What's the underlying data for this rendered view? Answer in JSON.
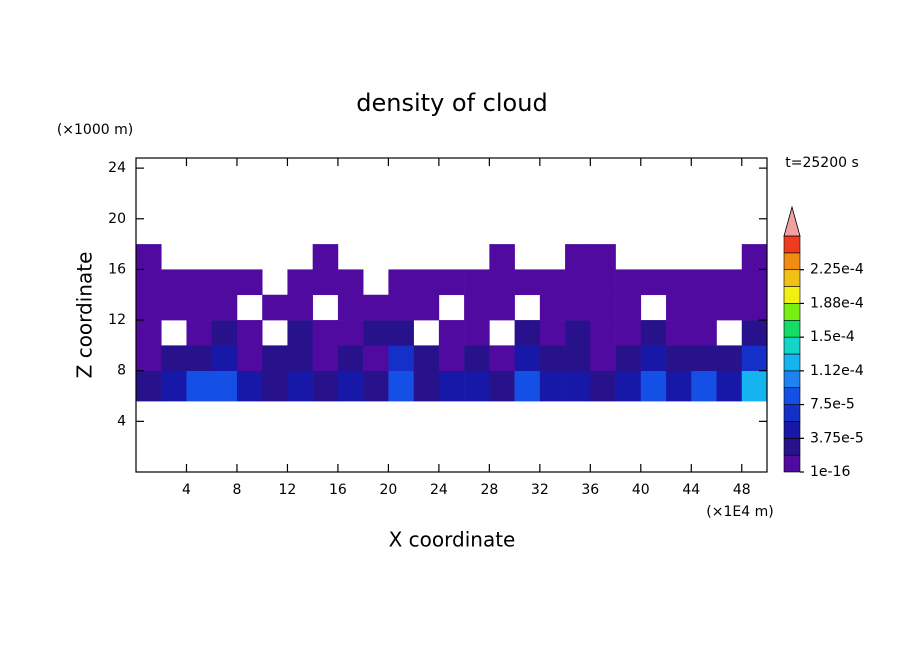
{
  "chart_data": {
    "type": "contour",
    "title": "density of cloud",
    "y_unit_label": "(×1000 m)",
    "x_unit_label": "(×1E4 m)",
    "time_label": "t=25200 s",
    "xlabel": "X coordinate",
    "ylabel": "Z coordinate",
    "xlim": [
      0,
      50
    ],
    "ylim": [
      0,
      24.8
    ],
    "xticks": [
      4,
      8,
      12,
      16,
      20,
      24,
      28,
      32,
      36,
      40,
      44,
      48
    ],
    "yticks": [
      4,
      8,
      12,
      16,
      20,
      24
    ],
    "x_edges": [
      0,
      2,
      4,
      6,
      8,
      10,
      12,
      14,
      16,
      18,
      20,
      22,
      24,
      26,
      28,
      30,
      32,
      34,
      36,
      38,
      40,
      42,
      44,
      46,
      48,
      50
    ],
    "z_edges": [
      5.6,
      8,
      10,
      12,
      14,
      16,
      18
    ],
    "values": [
      [
        3e-05,
        4e-05,
        8e-05,
        9e-05,
        4e-05,
        3e-05,
        4e-05,
        3e-05,
        5e-05,
        3e-05,
        9e-05,
        3e-05,
        5e-05,
        4e-05,
        3e-05,
        8e-05,
        5e-05,
        4e-05,
        3e-05,
        4e-05,
        8e-05,
        4e-05,
        8e-05,
        5e-05,
        0.00013
      ],
      [
        1e-05,
        2e-05,
        3e-05,
        4e-05,
        1e-05,
        2e-05,
        3e-05,
        1e-05,
        2e-05,
        1e-05,
        6e-05,
        2e-05,
        1e-05,
        2e-05,
        1e-05,
        4e-05,
        3e-05,
        2e-05,
        1e-05,
        2e-05,
        4e-05,
        2e-05,
        3e-05,
        2e-05,
        6e-05
      ],
      [
        1e-05,
        null,
        1e-05,
        3e-05,
        1e-05,
        null,
        2e-05,
        1e-05,
        1e-05,
        2e-05,
        3e-05,
        null,
        1e-05,
        1e-05,
        null,
        2e-05,
        1e-05,
        2e-05,
        1e-05,
        1e-05,
        2e-05,
        1e-05,
        1e-05,
        null,
        2e-05
      ],
      [
        1e-05,
        1e-05,
        1e-05,
        1e-05,
        null,
        1e-05,
        1e-05,
        null,
        1e-05,
        1e-05,
        1e-05,
        1e-05,
        null,
        1e-05,
        1e-05,
        null,
        1e-05,
        1e-05,
        1e-05,
        1e-05,
        null,
        1e-05,
        1e-05,
        1e-05,
        1e-05
      ],
      [
        1e-05,
        1e-05,
        1e-05,
        1e-05,
        1e-05,
        null,
        1e-05,
        1e-05,
        1e-05,
        null,
        1e-05,
        1e-05,
        1e-05,
        1e-05,
        1e-05,
        1e-05,
        1e-05,
        1e-05,
        1e-05,
        1e-05,
        1e-05,
        1e-05,
        1e-05,
        1e-05,
        1e-05
      ],
      [
        1e-05,
        null,
        null,
        null,
        null,
        null,
        null,
        1e-05,
        null,
        null,
        null,
        null,
        null,
        null,
        1e-05,
        null,
        null,
        1e-05,
        1e-05,
        null,
        null,
        null,
        null,
        null,
        1e-05
      ]
    ],
    "levels": [
      1e-16,
      1.875e-05,
      3.75e-05,
      5.625e-05,
      7.5e-05,
      9.375e-05,
      0.0001125,
      0.00013125,
      0.00015,
      0.00016875,
      0.0001875,
      0.00020625,
      0.000225,
      0.00024375,
      0.0002625
    ],
    "colors": [
      "#500aa0",
      "#28128c",
      "#1818a8",
      "#1430c8",
      "#1450e6",
      "#1e82f0",
      "#14b4f0",
      "#14d6c8",
      "#14dc64",
      "#78f014",
      "#f0f014",
      "#f0c014",
      "#f08c14",
      "#f03c1e"
    ],
    "extend_color": "#f0a0a0",
    "cbar_ticks": [
      {
        "value": 1e-16,
        "label": "1e-16"
      },
      {
        "value": 3.75e-05,
        "label": "3.75e-5"
      },
      {
        "value": 7.5e-05,
        "label": "7.5e-5"
      },
      {
        "value": 0.0001125,
        "label": "1.12e-4"
      },
      {
        "value": 0.00015,
        "label": "1.5e-4"
      },
      {
        "value": 0.0001875,
        "label": "1.88e-4"
      },
      {
        "value": 0.000225,
        "label": "2.25e-4"
      }
    ]
  }
}
